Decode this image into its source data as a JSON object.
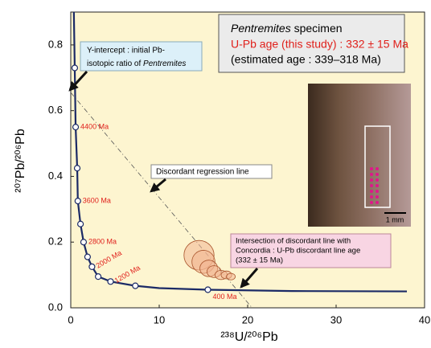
{
  "chart_data": {
    "type": "concordia",
    "x_label": "²³⁸U/²⁰⁶Pb",
    "y_label": "²⁰⁷Pb/²⁰⁶Pb",
    "xlim": [
      0,
      40
    ],
    "xticks": [
      0,
      10,
      20,
      30,
      40
    ],
    "ylim": [
      0,
      0.9
    ],
    "yticks": [
      {
        "value": 0,
        "label": "0.0"
      },
      0.2,
      0.4,
      0.6,
      0.8
    ],
    "concordia": {
      "color": "#1b2a66",
      "x": [
        0.35,
        0.45,
        0.55,
        0.73,
        0.8,
        1.1,
        1.45,
        1.9,
        2.4,
        3.1,
        4.5,
        7.3,
        10,
        15.5,
        25,
        38
      ],
      "y": [
        0.9,
        0.73,
        0.55,
        0.425,
        0.325,
        0.255,
        0.2,
        0.155,
        0.125,
        0.095,
        0.08,
        0.067,
        0.06,
        0.055,
        0.051,
        0.05
      ]
    },
    "age_points": {
      "label_color": "#e0201b",
      "x": [
        0.45,
        0.55,
        0.73,
        0.8,
        1.1,
        1.45,
        1.9,
        2.4,
        3.1,
        4.5,
        7.3,
        15.5
      ],
      "y": [
        0.73,
        0.55,
        0.425,
        0.325,
        0.255,
        0.2,
        0.155,
        0.125,
        0.095,
        0.08,
        0.067,
        0.055
      ],
      "labels": [
        null,
        "4400 Ma",
        null,
        "3600 Ma",
        null,
        "2800 Ma",
        null,
        "2000 Ma",
        null,
        "1200 Ma",
        null,
        "400 Ma"
      ]
    },
    "discordia": {
      "x": [
        0,
        20.5
      ],
      "y": [
        0.655,
        0
      ]
    },
    "analyses": {
      "fill": "#f2b592",
      "stroke": "#a9542c",
      "x": [
        14.5,
        15.0,
        15.6,
        16.2,
        17.0,
        17.6,
        18.1
      ],
      "y": [
        0.16,
        0.14,
        0.12,
        0.11,
        0.1,
        0.1,
        0.095
      ],
      "x_err": [
        1.7,
        1.3,
        1.0,
        0.8,
        0.7,
        0.6,
        0.5
      ],
      "y_err": [
        0.045,
        0.035,
        0.025,
        0.018,
        0.014,
        0.012,
        0.01
      ]
    },
    "specimen_box": {
      "name": "Pentremites",
      "text": " specimen",
      "age": "U-Pb age (this study) : 332 ± 15 Ma",
      "estimate": "(estimated age : 339–318 Ma)"
    },
    "intercept_note": {
      "line1": "Y-intercept : initial Pb-",
      "line2": "isotopic ratio of ",
      "name": "Pentremites"
    },
    "regression_note": "Discordant regression line",
    "intersection_note": [
      "Intersection of discordant line with",
      "Concordia : U-Pb discordant line age",
      "(332 ± 15 Ma)"
    ],
    "scale_bar": "1 mm"
  }
}
